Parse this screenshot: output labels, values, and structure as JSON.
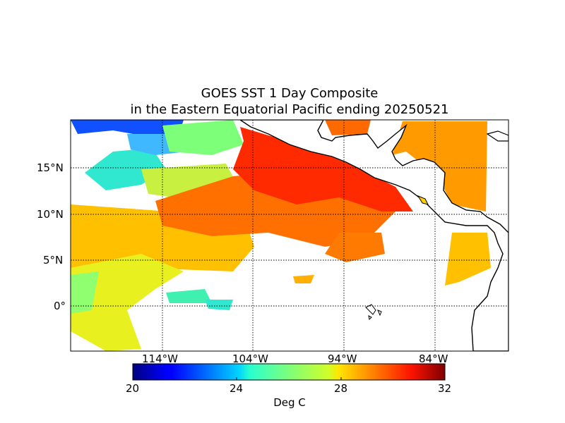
{
  "map": {
    "title_line1": "GOES SST 1 Day Composite",
    "title_line2": "in the Eastern Equatorial Pacific ending 20250521",
    "lon_ticks": [
      "114°W",
      "104°W",
      "94°W",
      "84°W"
    ],
    "lat_ticks": [
      "15°N",
      "10°N",
      "5°N",
      "0°"
    ],
    "colorbar": {
      "label": "Deg C",
      "ticks": [
        "20",
        "24",
        "28",
        "32"
      ],
      "min": 20,
      "max": 32,
      "colormap": "jet"
    },
    "colors": {
      "land": "#ffffff",
      "missing_data": "#ffffff",
      "coastline": "#000000",
      "gridline": "#000000"
    }
  }
}
